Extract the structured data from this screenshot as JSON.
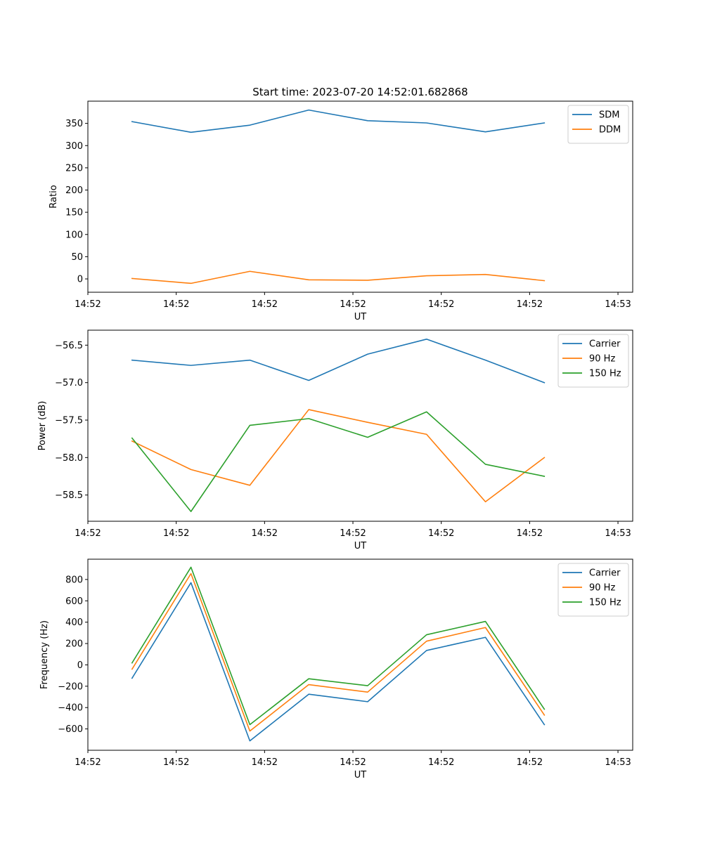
{
  "figure_title": "Start time: 2023-07-20 14:52:01.682868",
  "chart_data": [
    {
      "type": "line",
      "title": "Start time: 2023-07-20 14:52:01.682868",
      "xlabel": "UT",
      "ylabel": "Ratio",
      "ylim": [
        -30,
        400
      ],
      "yticks": [
        0,
        50,
        100,
        150,
        200,
        250,
        300,
        350
      ],
      "ytick_labels": [
        "0",
        "50",
        "100",
        "150",
        "200",
        "250",
        "300",
        "350"
      ],
      "xlim": [
        -0.75,
        8.5
      ],
      "xticks": [
        -0.75,
        0.75,
        2.25,
        3.75,
        5.25,
        6.75,
        8.25
      ],
      "xtick_labels": [
        "14:52",
        "14:52",
        "14:52",
        "14:52",
        "14:52",
        "14:52",
        "14:53"
      ],
      "x": [
        0,
        1,
        2,
        3,
        4,
        5,
        6,
        7
      ],
      "legend_position": "top-right",
      "series": [
        {
          "name": "SDM",
          "color": "#1f77b4",
          "values": [
            354,
            330,
            346,
            380,
            356,
            351,
            331,
            351
          ]
        },
        {
          "name": "DDM",
          "color": "#ff7f0e",
          "values": [
            1,
            -10,
            17,
            -2,
            -3,
            7,
            10,
            -4
          ]
        }
      ]
    },
    {
      "type": "line",
      "title": "",
      "xlabel": "UT",
      "ylabel": "Power (dB)",
      "ylim": [
        -58.85,
        -56.3
      ],
      "yticks": [
        -58.5,
        -58.0,
        -57.5,
        -57.0,
        -56.5
      ],
      "ytick_labels": [
        "−58.5",
        "−58.0",
        "−57.5",
        "−57.0",
        "−56.5"
      ],
      "xlim": [
        -0.75,
        8.5
      ],
      "xticks": [
        -0.75,
        0.75,
        2.25,
        3.75,
        5.25,
        6.75,
        8.25
      ],
      "xtick_labels": [
        "14:52",
        "14:52",
        "14:52",
        "14:52",
        "14:52",
        "14:52",
        "14:53"
      ],
      "x": [
        0,
        1,
        2,
        3,
        4,
        5,
        6,
        7
      ],
      "legend_position": "top-right",
      "series": [
        {
          "name": "Carrier",
          "color": "#1f77b4",
          "values": [
            -56.7,
            -56.77,
            -56.7,
            -56.97,
            -56.62,
            -56.42,
            -56.7,
            -57.0
          ]
        },
        {
          "name": "90 Hz",
          "color": "#ff7f0e",
          "values": [
            -57.78,
            -58.16,
            -58.37,
            -57.36,
            -57.53,
            -57.69,
            -58.59,
            -58.0
          ]
        },
        {
          "name": "150 Hz",
          "color": "#2ca02c",
          "values": [
            -57.74,
            -58.72,
            -57.57,
            -57.48,
            -57.73,
            -57.39,
            -58.09,
            -58.25
          ]
        }
      ]
    },
    {
      "type": "line",
      "title": "",
      "xlabel": "UT",
      "ylabel": "Frequency (Hz)",
      "ylim": [
        -800,
        990
      ],
      "yticks": [
        -600,
        -400,
        -200,
        0,
        200,
        400,
        600,
        800
      ],
      "ytick_labels": [
        "−600",
        "−400",
        "−200",
        "0",
        "200",
        "400",
        "600",
        "800"
      ],
      "xlim": [
        -0.75,
        8.5
      ],
      "xticks": [
        -0.75,
        0.75,
        2.25,
        3.75,
        5.25,
        6.75,
        8.25
      ],
      "xtick_labels": [
        "14:52",
        "14:52",
        "14:52",
        "14:52",
        "14:52",
        "14:52",
        "14:53"
      ],
      "x": [
        0,
        1,
        2,
        3,
        4,
        5,
        6,
        7
      ],
      "legend_position": "top-right",
      "series": [
        {
          "name": "Carrier",
          "color": "#1f77b4",
          "values": [
            -125,
            770,
            -712,
            -275,
            -345,
            135,
            258,
            -560
          ]
        },
        {
          "name": "90 Hz",
          "color": "#ff7f0e",
          "values": [
            -40,
            855,
            -620,
            -185,
            -255,
            222,
            350,
            -470
          ]
        },
        {
          "name": "150 Hz",
          "color": "#2ca02c",
          "values": [
            18,
            915,
            -560,
            -130,
            -195,
            282,
            407,
            -415
          ]
        }
      ]
    }
  ]
}
